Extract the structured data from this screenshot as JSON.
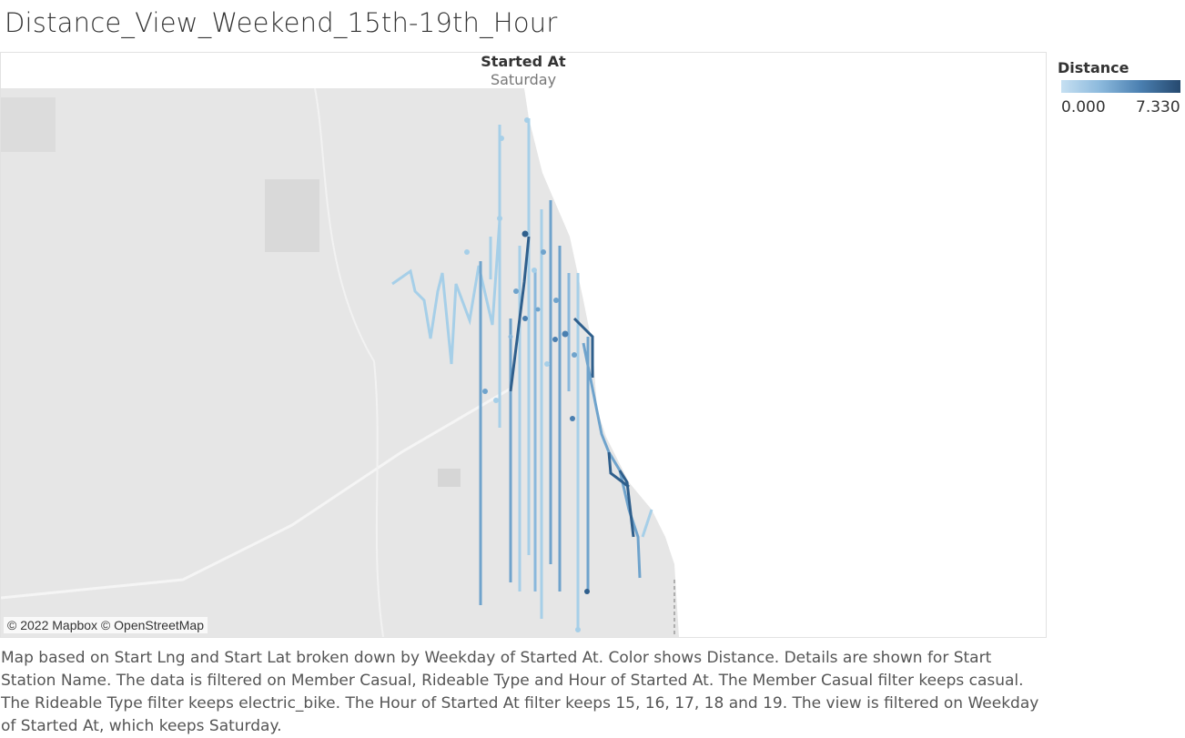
{
  "title": "Distance_View_Weekend_15th-19th_Hour",
  "header": {
    "label": "Started At",
    "value": "Saturday"
  },
  "legend": {
    "title": "Distance",
    "min": {
      "value": 0,
      "label": "0.000"
    },
    "max": {
      "value": 7.33,
      "label": "7.330"
    }
  },
  "attribution": "© 2022 Mapbox © OpenStreetMap",
  "caption": "Map based on Start Lng and Start Lat broken down by Weekday of Started At.  Color shows Distance.  Details are shown for Start Station Name. The data is filtered on Member Casual, Rideable Type and Hour of Started At. The Member Casual filter keeps casual. The Rideable Type filter keeps electric_bike. The Hour of Started At filter keeps 15, 16, 17, 18 and 19. The view is filtered on Weekday of Started At, which keeps Saturday."
}
